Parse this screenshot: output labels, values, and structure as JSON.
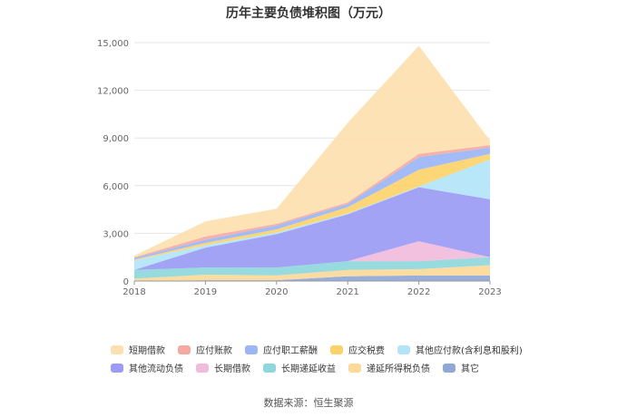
{
  "chart_data": {
    "type": "area",
    "stacked": true,
    "title": "历年主要负债堆积图（万元）",
    "categories": [
      "2018",
      "2019",
      "2020",
      "2021",
      "2022",
      "2023"
    ],
    "ylim": [
      0,
      15000
    ],
    "yticks": [
      "0",
      "3,000",
      "6,000",
      "9,000",
      "12,000",
      "15,000"
    ],
    "grid": true,
    "legend_position": "bottom",
    "series": [
      {
        "name": "其它",
        "color": "#8fa8d8",
        "values": [
          0,
          50,
          50,
          300,
          350,
          350
        ]
      },
      {
        "name": "递延所得税负债",
        "color": "#fdd99a",
        "values": [
          150,
          350,
          300,
          400,
          400,
          650
        ]
      },
      {
        "name": "长期递延收益",
        "color": "#8ed8dc",
        "values": [
          550,
          450,
          500,
          550,
          500,
          500
        ]
      },
      {
        "name": "长期借款",
        "color": "#f1bcdc",
        "values": [
          0,
          0,
          0,
          0,
          1250,
          0
        ]
      },
      {
        "name": "其他流动负债",
        "color": "#9b9bf5",
        "values": [
          0,
          1250,
          2100,
          2950,
          3400,
          3650
        ]
      },
      {
        "name": "其他应付款(含利息和股利)",
        "color": "#b2e5f8",
        "values": [
          600,
          150,
          100,
          50,
          50,
          2500
        ]
      },
      {
        "name": "应交税费",
        "color": "#fcd36b",
        "values": [
          50,
          150,
          200,
          400,
          1050,
          350
        ]
      },
      {
        "name": "应付职工薪酬",
        "color": "#9bb5f5",
        "values": [
          100,
          200,
          250,
          200,
          800,
          400
        ]
      },
      {
        "name": "应付账款",
        "color": "#f5aaa1",
        "values": [
          50,
          200,
          100,
          100,
          200,
          150
        ]
      },
      {
        "name": "短期借款",
        "color": "#fde0b0",
        "values": [
          100,
          950,
          950,
          5000,
          6800,
          300
        ]
      }
    ]
  },
  "source": "数据来源：恒生聚源"
}
